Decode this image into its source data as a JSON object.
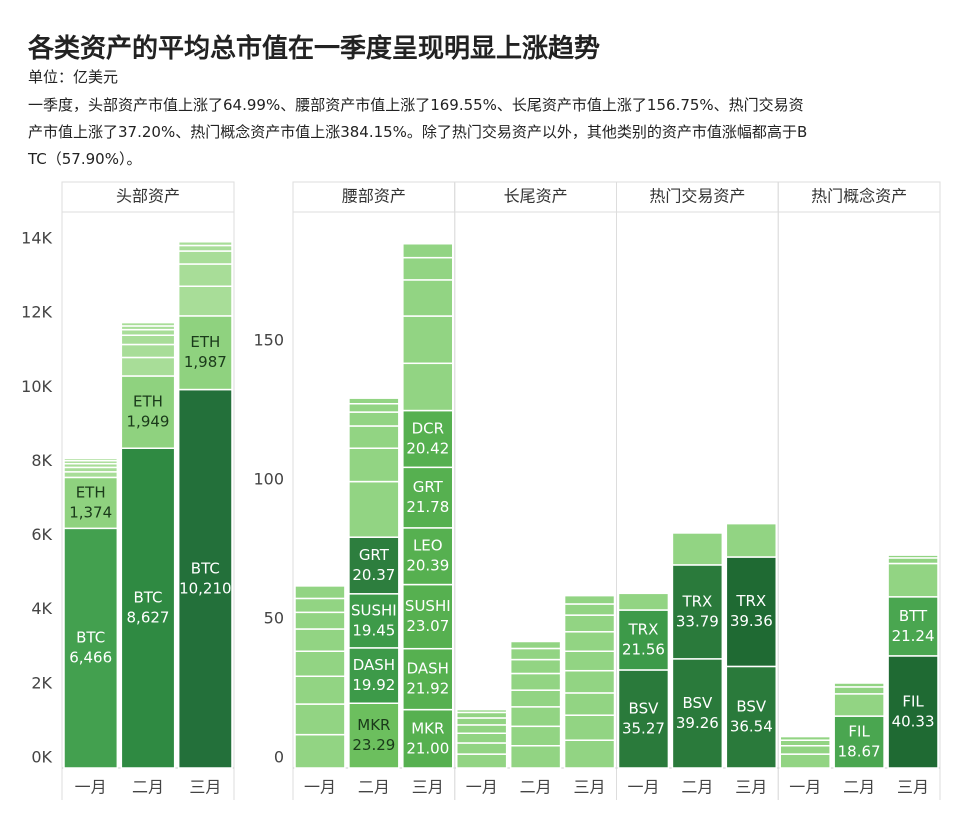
{
  "title": "各类资产的平均总市值在一季度呈现明显上涨趋势",
  "unit": "单位：亿美元",
  "description": [
    "一季度，头部资产市值上涨了64.99%、腰部资产市值上涨了169.55%、长尾资产市值上涨了156.75%、热门交易资",
    "产市值上涨了37.20%、热门概念资产市值上涨384.15%。除了热门交易资产以外，其他类别的资产市值涨幅都高于B",
    "TC（57.90%）。"
  ],
  "chart_data": [
    {
      "type": "stacked-bar",
      "ylim": [
        0,
        15000
      ],
      "yticks": [
        {
          "value": 0,
          "label": "0K"
        },
        {
          "value": 2000,
          "label": "2K"
        },
        {
          "value": 4000,
          "label": "4K"
        },
        {
          "value": 6000,
          "label": "6K"
        },
        {
          "value": 8000,
          "label": "8K"
        },
        {
          "value": 10000,
          "label": "10K"
        },
        {
          "value": 12000,
          "label": "12K"
        },
        {
          "value": 14000,
          "label": "14K"
        }
      ],
      "other_color": "#a8dd98",
      "facets": [
        {
          "title": "头部资产",
          "categories": [
            "一月",
            "二月",
            "三月"
          ],
          "bars": [
            [
              {
                "name": "BTC",
                "value": 6466,
                "value_label": "6,466",
                "color": "#43a04f"
              },
              {
                "name": "ETH",
                "value": 1374,
                "value_label": "1,374",
                "color": "#8fd27f"
              },
              {
                "value": 150
              },
              {
                "value": 120
              },
              {
                "value": 100
              },
              {
                "value": 80
              },
              {
                "value": 60
              }
            ],
            [
              {
                "name": "BTC",
                "value": 8627,
                "value_label": "8,627",
                "color": "#2f8a42"
              },
              {
                "name": "ETH",
                "value": 1949,
                "value_label": "1,949",
                "color": "#8fd27f"
              },
              {
                "value": 500
              },
              {
                "value": 350
              },
              {
                "value": 250
              },
              {
                "value": 150
              },
              {
                "value": 100
              },
              {
                "value": 90
              }
            ],
            [
              {
                "name": "BTC",
                "value": 10210,
                "value_label": "10,210",
                "color": "#23703a"
              },
              {
                "name": "ETH",
                "value": 1987,
                "value_label": "1,987",
                "color": "#8fd27f"
              },
              {
                "value": 800
              },
              {
                "value": 600
              },
              {
                "value": 350
              },
              {
                "value": 150
              },
              {
                "value": 100
              }
            ]
          ]
        }
      ]
    },
    {
      "type": "stacked-bar",
      "ylim": [
        0,
        200
      ],
      "yticks": [
        0,
        50,
        100,
        150
      ],
      "other_color": "#92d483",
      "facets": [
        {
          "title": "腰部资产",
          "categories": [
            "一月",
            "二月",
            "三月"
          ],
          "bars": [
            [
              {
                "value": 12
              },
              {
                "value": 11
              },
              {
                "value": 10
              },
              {
                "value": 9
              },
              {
                "value": 8
              },
              {
                "value": 6
              },
              {
                "value": 5
              },
              {
                "value": 4.5
              }
            ],
            [
              {
                "name": "MKR",
                "value": 23.29,
                "value_label": "23.29",
                "color": "#6cbf5e"
              },
              {
                "name": "DASH",
                "value": 19.92,
                "value_label": "19.92",
                "color": "#3d9a49"
              },
              {
                "name": "SUSHI",
                "value": 19.45,
                "value_label": "19.45",
                "color": "#3d9a49"
              },
              {
                "name": "GRT",
                "value": 20.37,
                "value_label": "20.37",
                "color": "#2d7e3e"
              },
              {
                "value": 20
              },
              {
                "value": 12
              },
              {
                "value": 8
              },
              {
                "value": 5
              },
              {
                "value": 3
              },
              {
                "value": 2
              }
            ],
            [
              {
                "name": "MKR",
                "value": 21.0,
                "value_label": "21.00",
                "color": "#56b050"
              },
              {
                "name": "DASH",
                "value": 21.92,
                "value_label": "21.92",
                "color": "#56b050"
              },
              {
                "name": "SUSHI",
                "value": 23.07,
                "value_label": "23.07",
                "color": "#56b050"
              },
              {
                "name": "LEO",
                "value": 20.39,
                "value_label": "20.39",
                "color": "#56b050"
              },
              {
                "name": "GRT",
                "value": 21.78,
                "value_label": "21.78",
                "color": "#56b050"
              },
              {
                "name": "DCR",
                "value": 20.42,
                "value_label": "20.42",
                "color": "#56b050"
              },
              {
                "value": 17
              },
              {
                "value": 17
              },
              {
                "value": 13
              },
              {
                "value": 8
              },
              {
                "value": 5
              }
            ]
          ]
        },
        {
          "title": "长尾资产",
          "categories": [
            "一月",
            "二月",
            "三月"
          ],
          "bars": [
            [
              {
                "value": 5
              },
              {
                "value": 4
              },
              {
                "value": 3.5
              },
              {
                "value": 3
              },
              {
                "value": 2.5
              },
              {
                "value": 2
              },
              {
                "value": 1
              }
            ],
            [
              {
                "value": 8
              },
              {
                "value": 7
              },
              {
                "value": 7
              },
              {
                "value": 6
              },
              {
                "value": 6
              },
              {
                "value": 5
              },
              {
                "value": 4
              },
              {
                "value": 2.5
              }
            ],
            [
              {
                "value": 10
              },
              {
                "value": 9
              },
              {
                "value": 8
              },
              {
                "value": 8
              },
              {
                "value": 7
              },
              {
                "value": 7
              },
              {
                "value": 6
              },
              {
                "value": 4
              },
              {
                "value": 3
              }
            ]
          ]
        },
        {
          "title": "热门交易资产",
          "categories": [
            "一月",
            "二月",
            "三月"
          ],
          "bars": [
            [
              {
                "name": "BSV",
                "value": 35.27,
                "value_label": "35.27",
                "color": "#2a7a3b"
              },
              {
                "name": "TRX",
                "value": 21.56,
                "value_label": "21.56",
                "color": "#3d9a49"
              },
              {
                "value": 6
              }
            ],
            [
              {
                "name": "BSV",
                "value": 39.26,
                "value_label": "39.26",
                "color": "#2a7a3b"
              },
              {
                "name": "TRX",
                "value": 33.79,
                "value_label": "33.79",
                "color": "#2a7a3b"
              },
              {
                "value": 11.5
              }
            ],
            [
              {
                "name": "BSV",
                "value": 36.54,
                "value_label": "36.54",
                "color": "#2a7a3b"
              },
              {
                "name": "TRX",
                "value": 39.36,
                "value_label": "39.36",
                "color": "#1f6a33"
              },
              {
                "value": 12
              }
            ]
          ]
        },
        {
          "title": "热门概念资产",
          "categories": [
            "一月",
            "二月",
            "三月"
          ],
          "bars": [
            [
              {
                "value": 5
              },
              {
                "value": 3
              },
              {
                "value": 2
              },
              {
                "value": 1.3
              }
            ],
            [
              {
                "name": "FIL",
                "value": 18.67,
                "value_label": "18.67",
                "color": "#4aa650"
              },
              {
                "value": 8
              },
              {
                "value": 2.5
              },
              {
                "value": 1.4
              }
            ],
            [
              {
                "name": "FIL",
                "value": 40.33,
                "value_label": "40.33",
                "color": "#1f6a33"
              },
              {
                "name": "BTT",
                "value": 21.24,
                "value_label": "21.24",
                "color": "#4aa650"
              },
              {
                "value": 12
              },
              {
                "value": 2
              },
              {
                "value": 1
              }
            ]
          ]
        }
      ]
    }
  ]
}
